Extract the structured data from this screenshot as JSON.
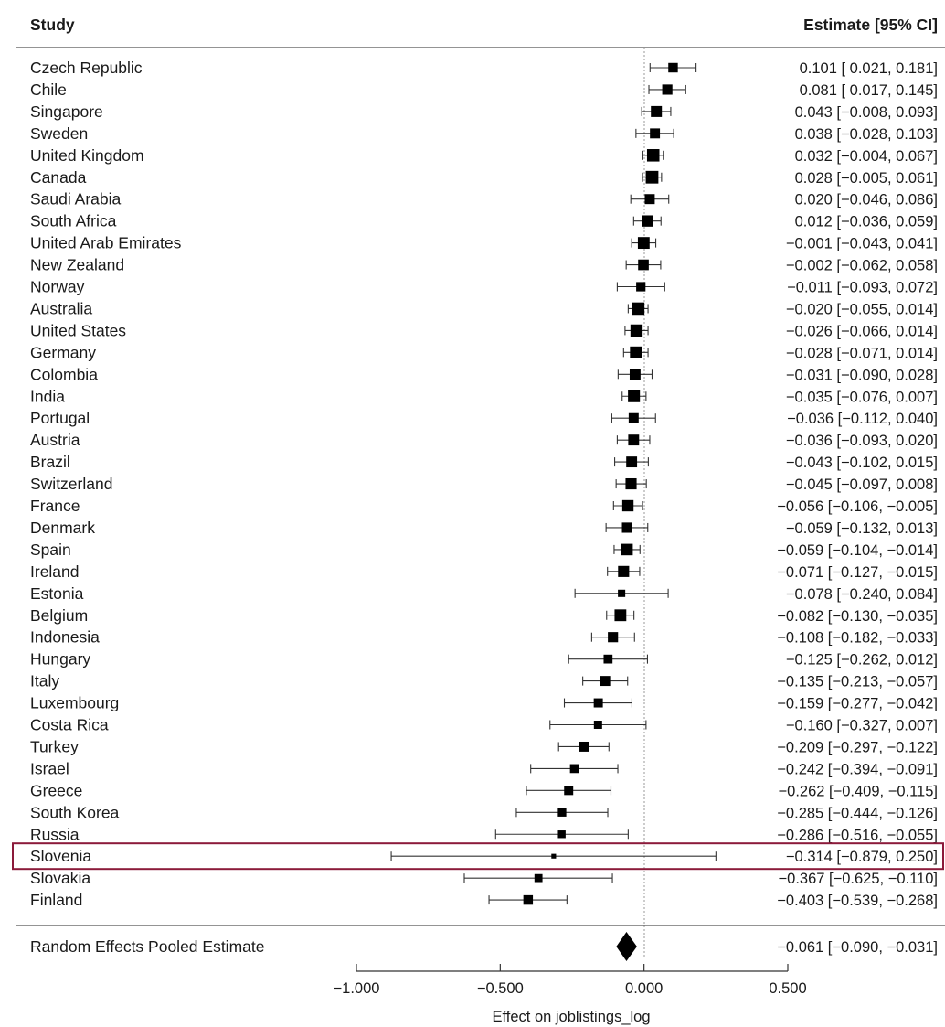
{
  "chart_data": {
    "type": "forest",
    "header_study": "Study",
    "header_estimate": "Estimate [95% CI]",
    "xlabel": "Effect on joblistings_log",
    "xlim": [
      -1.0,
      0.5
    ],
    "xticks": [
      "−1.000",
      "−0.500",
      "0.000",
      "0.500"
    ],
    "xtick_values": [
      -1.0,
      -0.5,
      0.0,
      0.5
    ],
    "reference_line": 0.0,
    "highlighted_study": "Slovenia",
    "highlight_color": "#8b1a3a",
    "studies": [
      {
        "name": "Czech Republic",
        "estimate": 0.101,
        "lower": 0.021,
        "upper": 0.181,
        "text": "0.101 [ 0.021,  0.181]",
        "weight": 0.62
      },
      {
        "name": "Chile",
        "estimate": 0.081,
        "lower": 0.017,
        "upper": 0.145,
        "text": "0.081 [ 0.017,  0.145]",
        "weight": 0.68
      },
      {
        "name": "Singapore",
        "estimate": 0.043,
        "lower": -0.008,
        "upper": 0.093,
        "text": "0.043 [−0.008,  0.093]",
        "weight": 0.75
      },
      {
        "name": "Sweden",
        "estimate": 0.038,
        "lower": -0.028,
        "upper": 0.103,
        "text": "0.038 [−0.028,  0.103]",
        "weight": 0.66
      },
      {
        "name": "United Kingdom",
        "estimate": 0.032,
        "lower": -0.004,
        "upper": 0.067,
        "text": "0.032 [−0.004,  0.067]",
        "weight": 0.88
      },
      {
        "name": "Canada",
        "estimate": 0.028,
        "lower": -0.005,
        "upper": 0.061,
        "text": "0.028 [−0.005,  0.061]",
        "weight": 0.9
      },
      {
        "name": "Saudi Arabia",
        "estimate": 0.02,
        "lower": -0.046,
        "upper": 0.086,
        "text": "0.020 [−0.046,  0.086]",
        "weight": 0.66
      },
      {
        "name": "South Africa",
        "estimate": 0.012,
        "lower": -0.036,
        "upper": 0.059,
        "text": "0.012 [−0.036,  0.059]",
        "weight": 0.78
      },
      {
        "name": "United Arab Emirates",
        "estimate": -0.001,
        "lower": -0.043,
        "upper": 0.041,
        "text": "−0.001 [−0.043,  0.041]",
        "weight": 0.82
      },
      {
        "name": "New Zealand",
        "estimate": -0.002,
        "lower": -0.062,
        "upper": 0.058,
        "text": "−0.002 [−0.062,  0.058]",
        "weight": 0.72
      },
      {
        "name": "Norway",
        "estimate": -0.011,
        "lower": -0.093,
        "upper": 0.072,
        "text": "−0.011 [−0.093,  0.072]",
        "weight": 0.6
      },
      {
        "name": "Australia",
        "estimate": -0.02,
        "lower": -0.055,
        "upper": 0.014,
        "text": "−0.020 [−0.055,  0.014]",
        "weight": 0.88
      },
      {
        "name": "United States",
        "estimate": -0.026,
        "lower": -0.066,
        "upper": 0.014,
        "text": "−0.026 [−0.066,  0.014]",
        "weight": 0.86
      },
      {
        "name": "Germany",
        "estimate": -0.028,
        "lower": -0.071,
        "upper": 0.014,
        "text": "−0.028 [−0.071,  0.014]",
        "weight": 0.84
      },
      {
        "name": "Colombia",
        "estimate": -0.031,
        "lower": -0.09,
        "upper": 0.028,
        "text": "−0.031 [−0.090,  0.028]",
        "weight": 0.74
      },
      {
        "name": "India",
        "estimate": -0.035,
        "lower": -0.076,
        "upper": 0.007,
        "text": "−0.035 [−0.076,  0.007]",
        "weight": 0.84
      },
      {
        "name": "Portugal",
        "estimate": -0.036,
        "lower": -0.112,
        "upper": 0.04,
        "text": "−0.036 [−0.112,  0.040]",
        "weight": 0.66
      },
      {
        "name": "Austria",
        "estimate": -0.036,
        "lower": -0.093,
        "upper": 0.02,
        "text": "−0.036 [−0.093,  0.020]",
        "weight": 0.74
      },
      {
        "name": "Brazil",
        "estimate": -0.043,
        "lower": -0.102,
        "upper": 0.015,
        "text": "−0.043 [−0.102,  0.015]",
        "weight": 0.74
      },
      {
        "name": "Switzerland",
        "estimate": -0.045,
        "lower": -0.097,
        "upper": 0.008,
        "text": "−0.045 [−0.097,  0.008]",
        "weight": 0.76
      },
      {
        "name": "France",
        "estimate": -0.056,
        "lower": -0.106,
        "upper": -0.005,
        "text": "−0.056 [−0.106, −0.005]",
        "weight": 0.78
      },
      {
        "name": "Denmark",
        "estimate": -0.059,
        "lower": -0.132,
        "upper": 0.013,
        "text": "−0.059 [−0.132,  0.013]",
        "weight": 0.68
      },
      {
        "name": "Spain",
        "estimate": -0.059,
        "lower": -0.104,
        "upper": -0.014,
        "text": "−0.059 [−0.104, −0.014]",
        "weight": 0.8
      },
      {
        "name": "Ireland",
        "estimate": -0.071,
        "lower": -0.127,
        "upper": -0.015,
        "text": "−0.071 [−0.127, −0.015]",
        "weight": 0.76
      },
      {
        "name": "Estonia",
        "estimate": -0.078,
        "lower": -0.24,
        "upper": 0.084,
        "text": "−0.078 [−0.240,  0.084]",
        "weight": 0.42
      },
      {
        "name": "Belgium",
        "estimate": -0.082,
        "lower": -0.13,
        "upper": -0.035,
        "text": "−0.082 [−0.130, −0.035]",
        "weight": 0.82
      },
      {
        "name": "Indonesia",
        "estimate": -0.108,
        "lower": -0.182,
        "upper": -0.033,
        "text": "−0.108 [−0.182, −0.033]",
        "weight": 0.68
      },
      {
        "name": "Hungary",
        "estimate": -0.125,
        "lower": -0.262,
        "upper": 0.012,
        "text": "−0.125 [−0.262,  0.012]",
        "weight": 0.56
      },
      {
        "name": "Italy",
        "estimate": -0.135,
        "lower": -0.213,
        "upper": -0.057,
        "text": "−0.135 [−0.213, −0.057]",
        "weight": 0.66
      },
      {
        "name": "Luxembourg",
        "estimate": -0.159,
        "lower": -0.277,
        "upper": -0.042,
        "text": "−0.159 [−0.277, −0.042]",
        "weight": 0.58
      },
      {
        "name": "Costa Rica",
        "estimate": -0.16,
        "lower": -0.327,
        "upper": 0.007,
        "text": "−0.160 [−0.327,  0.007]",
        "weight": 0.5
      },
      {
        "name": "Turkey",
        "estimate": -0.209,
        "lower": -0.297,
        "upper": -0.122,
        "text": "−0.209 [−0.297, −0.122]",
        "weight": 0.66
      },
      {
        "name": "Israel",
        "estimate": -0.242,
        "lower": -0.394,
        "upper": -0.091,
        "text": "−0.242 [−0.394, −0.091]",
        "weight": 0.56
      },
      {
        "name": "Greece",
        "estimate": -0.262,
        "lower": -0.409,
        "upper": -0.115,
        "text": "−0.262 [−0.409, −0.115]",
        "weight": 0.58
      },
      {
        "name": "South Korea",
        "estimate": -0.285,
        "lower": -0.444,
        "upper": -0.126,
        "text": "−0.285 [−0.444, −0.126]",
        "weight": 0.52
      },
      {
        "name": "Russia",
        "estimate": -0.286,
        "lower": -0.516,
        "upper": -0.055,
        "text": "−0.286 [−0.516, −0.055]",
        "weight": 0.45
      },
      {
        "name": "Slovenia",
        "estimate": -0.314,
        "lower": -0.879,
        "upper": 0.25,
        "text": "−0.314 [−0.879,  0.250]",
        "weight": 0.18
      },
      {
        "name": "Slovakia",
        "estimate": -0.367,
        "lower": -0.625,
        "upper": -0.11,
        "text": "−0.367 [−0.625, −0.110]",
        "weight": 0.48
      },
      {
        "name": "Finland",
        "estimate": -0.403,
        "lower": -0.539,
        "upper": -0.268,
        "text": "−0.403 [−0.539, −0.268]",
        "weight": 0.62
      }
    ],
    "pooled": {
      "name": "Random Effects Pooled Estimate",
      "estimate": -0.061,
      "lower": -0.09,
      "upper": -0.031,
      "text": "−0.061 [−0.090, −0.031]"
    }
  }
}
